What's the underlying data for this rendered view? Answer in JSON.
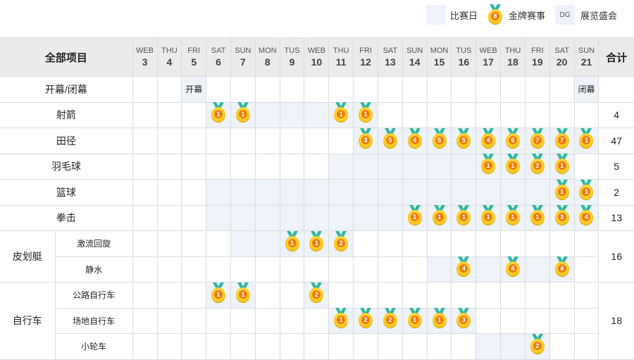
{
  "legend": {
    "match_day": "比赛日",
    "gold_event": "金牌赛事",
    "gold_icon_number": "8",
    "expo_code": "DG",
    "expo": "展览盛会"
  },
  "colors": {
    "shaded": "#eef3f9",
    "header_bg": "#ebebeb",
    "medal_gold": "#f5c400",
    "medal_core": "#ef7d0a",
    "ribbon": "#2fb8a4"
  },
  "header": {
    "all_events": "全部项目",
    "total": "合计"
  },
  "days": [
    {
      "w": "WEB",
      "d": "3"
    },
    {
      "w": "THU",
      "d": "4"
    },
    {
      "w": "FRI",
      "d": "5"
    },
    {
      "w": "SAT",
      "d": "6"
    },
    {
      "w": "SUN",
      "d": "7"
    },
    {
      "w": "MON",
      "d": "8"
    },
    {
      "w": "TUS",
      "d": "9"
    },
    {
      "w": "WEB",
      "d": "10"
    },
    {
      "w": "THU",
      "d": "11"
    },
    {
      "w": "FRI",
      "d": "12"
    },
    {
      "w": "SAT",
      "d": "13"
    },
    {
      "w": "SUN",
      "d": "14"
    },
    {
      "w": "MON",
      "d": "15"
    },
    {
      "w": "TUS",
      "d": "16"
    },
    {
      "w": "WEB",
      "d": "17"
    },
    {
      "w": "THU",
      "d": "18"
    },
    {
      "w": "FRI",
      "d": "19"
    },
    {
      "w": "SAT",
      "d": "20"
    },
    {
      "w": "SUN",
      "d": "21"
    }
  ],
  "rows": [
    {
      "name": "开幕/闭幕",
      "shaded": [
        "5",
        "21"
      ],
      "text": {
        "5": "开幕",
        "21": "闭幕"
      },
      "medals": {},
      "total": ""
    },
    {
      "name": "射箭",
      "shaded": [
        "6",
        "7",
        "8",
        "9",
        "10",
        "11",
        "12"
      ],
      "medals": {
        "6": "1",
        "7": "1",
        "11": "1",
        "12": "1"
      },
      "total": "4"
    },
    {
      "name": "田径",
      "shaded": [
        "12",
        "13",
        "14",
        "15",
        "16",
        "17",
        "18",
        "19",
        "20",
        "21"
      ],
      "medals": {
        "12": "3",
        "13": "5",
        "14": "4",
        "15": "5",
        "16": "5",
        "17": "4",
        "18": "6",
        "19": "7",
        "20": "7",
        "21": "1"
      },
      "total": "47"
    },
    {
      "name": "羽毛球",
      "shaded": [
        "11",
        "12",
        "13",
        "14",
        "15",
        "16",
        "17",
        "18",
        "19",
        "20"
      ],
      "medals": {
        "17": "1",
        "18": "1",
        "19": "2",
        "20": "1"
      },
      "total": "5"
    },
    {
      "name": "篮球",
      "shaded": [
        "6",
        "7",
        "8",
        "9",
        "10",
        "11",
        "12",
        "13",
        "14",
        "15",
        "16",
        "17",
        "18",
        "19",
        "20",
        "21"
      ],
      "medals": {
        "20": "1",
        "21": "1"
      },
      "total": "2"
    },
    {
      "name": "拳击",
      "shaded": [
        "6",
        "7",
        "8",
        "9",
        "10",
        "11",
        "12",
        "13",
        "14",
        "15",
        "16",
        "17",
        "18",
        "19",
        "20",
        "21"
      ],
      "medals": {
        "14": "1",
        "15": "1",
        "16": "1",
        "17": "1",
        "18": "1",
        "19": "1",
        "20": "3",
        "21": "4"
      },
      "total": "13"
    },
    {
      "group": "皮划艇",
      "group_total": "16",
      "subs": [
        {
          "name": "激流回旋",
          "shaded": [
            "7",
            "8",
            "9",
            "10",
            "11"
          ],
          "medals": {
            "9": "1",
            "10": "1",
            "11": "2"
          }
        },
        {
          "name": "静水",
          "shaded": [
            "15",
            "16",
            "17",
            "18",
            "19",
            "20"
          ],
          "medals": {
            "16": "4",
            "18": "4",
            "20": "4"
          }
        }
      ]
    },
    {
      "group": "自行车",
      "group_total": "18",
      "subs": [
        {
          "name": "公路自行车",
          "shaded": [
            "6",
            "7",
            "10"
          ],
          "medals": {
            "6": "1",
            "7": "1",
            "10": "2"
          }
        },
        {
          "name": "场地自行车",
          "shaded": [
            "11",
            "12",
            "13",
            "14",
            "15",
            "16"
          ],
          "medals": {
            "11": "1",
            "12": "2",
            "13": "2",
            "14": "1",
            "15": "1",
            "16": "3"
          }
        },
        {
          "name": "小轮车",
          "shaded": [
            "17",
            "18",
            "19"
          ],
          "medals": {
            "19": "2"
          }
        }
      ]
    }
  ]
}
